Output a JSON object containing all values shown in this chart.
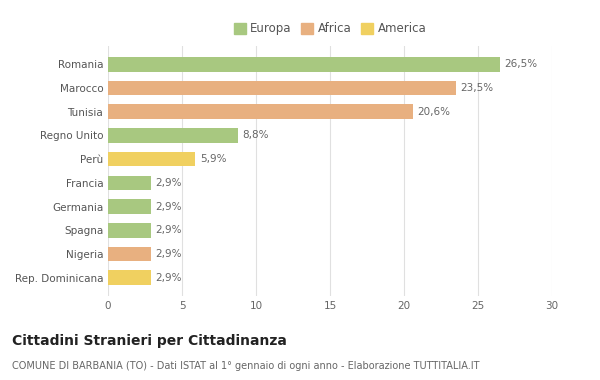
{
  "categories": [
    "Romania",
    "Marocco",
    "Tunisia",
    "Regno Unito",
    "Perù",
    "Francia",
    "Germania",
    "Spagna",
    "Nigeria",
    "Rep. Dominicana"
  ],
  "values": [
    26.5,
    23.5,
    20.6,
    8.8,
    5.9,
    2.9,
    2.9,
    2.9,
    2.9,
    2.9
  ],
  "colors": [
    "#a8c880",
    "#e8b080",
    "#e8b080",
    "#a8c880",
    "#f0d060",
    "#a8c880",
    "#a8c880",
    "#a8c880",
    "#e8b080",
    "#f0d060"
  ],
  "labels": [
    "26,5%",
    "23,5%",
    "20,6%",
    "8,8%",
    "5,9%",
    "2,9%",
    "2,9%",
    "2,9%",
    "2,9%",
    "2,9%"
  ],
  "legend_labels": [
    "Europa",
    "Africa",
    "America"
  ],
  "legend_colors": [
    "#a8c880",
    "#e8b080",
    "#f0d060"
  ],
  "xlim": [
    0,
    30
  ],
  "xticks": [
    0,
    5,
    10,
    15,
    20,
    25,
    30
  ],
  "title": "Cittadini Stranieri per Cittadinanza",
  "subtitle": "COMUNE DI BARBANIA (TO) - Dati ISTAT al 1° gennaio di ogni anno - Elaborazione TUTTITALIA.IT",
  "bg_color": "#ffffff",
  "grid_color": "#e0e0e0",
  "bar_height": 0.62,
  "label_fontsize": 7.5,
  "tick_fontsize": 7.5,
  "title_fontsize": 10,
  "subtitle_fontsize": 7,
  "legend_fontsize": 8.5
}
